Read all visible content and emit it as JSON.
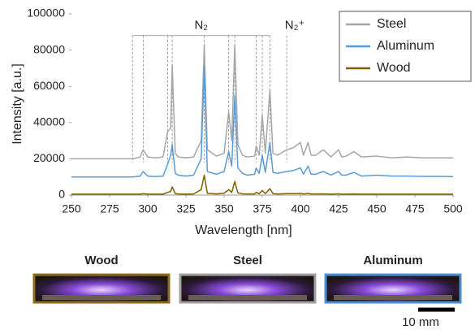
{
  "chart_data": {
    "type": "line",
    "xlabel": "Wavelength [nm]",
    "ylabel": "Intensity [a.u.]",
    "x": [
      250,
      260,
      270,
      280,
      290,
      295,
      297,
      300,
      305,
      310,
      313,
      315,
      316,
      318,
      320,
      325,
      330,
      335,
      337,
      339,
      345,
      350,
      353,
      355,
      357,
      359,
      362,
      365,
      370,
      371,
      373,
      375,
      377,
      380,
      382,
      385,
      391,
      395,
      400,
      402,
      405,
      407,
      410,
      415,
      420,
      425,
      427,
      430,
      435,
      440,
      450,
      460,
      470,
      480,
      490,
      500
    ],
    "series": [
      {
        "name": "Steel",
        "color": "#a6a6a6",
        "values": [
          20000,
          20000,
          20000,
          20000,
          20000,
          21000,
          25000,
          21000,
          20500,
          21000,
          35000,
          37000,
          72000,
          23000,
          21000,
          20500,
          21000,
          30000,
          83000,
          25000,
          21500,
          23000,
          46000,
          30000,
          83000,
          28000,
          22000,
          21000,
          21500,
          27000,
          22000,
          44000,
          23000,
          58000,
          23000,
          22000,
          25000,
          26000,
          29000,
          22000,
          29000,
          22000,
          22000,
          25000,
          21000,
          25000,
          21000,
          21500,
          24000,
          21000,
          21500,
          20500,
          21000,
          20500,
          20500,
          20500
        ]
      },
      {
        "name": "Aluminum",
        "color": "#5b9bd5",
        "values": [
          10000,
          10000,
          10000,
          10000,
          10000,
          10500,
          13000,
          10500,
          10200,
          10500,
          17000,
          22000,
          28000,
          12000,
          11000,
          10500,
          11000,
          20000,
          71000,
          13000,
          11500,
          13000,
          24000,
          16000,
          55000,
          15000,
          12000,
          11000,
          11500,
          15000,
          12000,
          22000,
          12500,
          29000,
          12500,
          12000,
          13000,
          13500,
          15000,
          11500,
          16000,
          11500,
          11500,
          13000,
          11000,
          13000,
          11000,
          11000,
          12500,
          10500,
          11000,
          10500,
          10500,
          10300,
          10300,
          10200
        ]
      },
      {
        "name": "Wood",
        "color": "#7f6000",
        "values": [
          500,
          500,
          500,
          500,
          500,
          500,
          800,
          500,
          500,
          500,
          1500,
          2000,
          4500,
          800,
          600,
          500,
          600,
          3000,
          11000,
          1000,
          600,
          1000,
          3000,
          1500,
          7500,
          1200,
          700,
          600,
          600,
          1500,
          700,
          2500,
          800,
          3500,
          800,
          600,
          800,
          800,
          900,
          600,
          900,
          600,
          600,
          700,
          500,
          700,
          500,
          500,
          600,
          500,
          500,
          500,
          500,
          500,
          500,
          500
        ]
      }
    ],
    "xlim": [
      250,
      500
    ],
    "xticks": [
      250,
      275,
      300,
      325,
      350,
      375,
      400,
      425,
      450,
      475,
      500
    ],
    "ylim": [
      0,
      100000
    ],
    "yticks": [
      0,
      20000,
      40000,
      60000,
      80000,
      100000
    ],
    "grid": false,
    "legend": "top-right",
    "bands": [
      {
        "label": "N₂",
        "wavelengths": [
          290,
          297,
          313,
          316,
          337,
          353,
          357,
          371,
          375,
          380
        ]
      },
      {
        "label": "N₂⁺",
        "wavelengths": [
          391
        ]
      }
    ]
  },
  "photos": [
    {
      "label": "Wood",
      "border": "#8b6d1f"
    },
    {
      "label": "Steel",
      "border": "#a0a0a0"
    },
    {
      "label": "Aluminum",
      "border": "#4a8fd0"
    }
  ],
  "scale_bar": "10 mm"
}
